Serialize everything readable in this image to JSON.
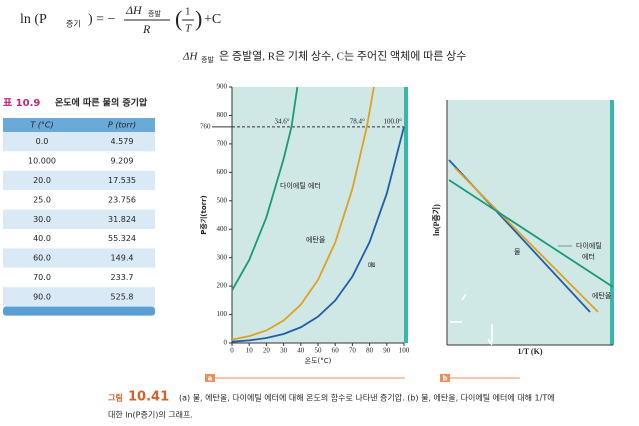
{
  "formula": {
    "lhs": "ln (P",
    "lhs_sub": "증기",
    "eq": ") = −",
    "num": "ΔH",
    "num_sub": "증발",
    "den": "R",
    "frac_num": "1",
    "frac_den": "T",
    "tail": "+C"
  },
  "note": {
    "dh": "ΔH",
    "dh_sub": "증발",
    "text": "은 증발열, R은 기체 상수, C는 주어진 액체에 따른 상수"
  },
  "table": {
    "number": "표 10.9",
    "title": "온도에 따른 물의 증기압",
    "header": [
      "T (°C)",
      "P (torr)"
    ],
    "rows": [
      [
        "0.0",
        "4.579"
      ],
      [
        "10.000",
        "9.209"
      ],
      [
        "20.0",
        "17.535"
      ],
      [
        "25.0",
        "23.756"
      ],
      [
        "30.0",
        "31.824"
      ],
      [
        "40.0",
        "55.324"
      ],
      [
        "60.0",
        "149.4"
      ],
      [
        "70.0",
        "233.7"
      ],
      [
        "90.0",
        "525.8"
      ]
    ]
  },
  "chart_data": [
    {
      "type": "line",
      "panel": "a",
      "x_label": "온도(°C)",
      "y_label": "P증기(torr)",
      "xlim": [
        0,
        100
      ],
      "ylim": [
        0,
        900
      ],
      "xticks": [
        0,
        10,
        20,
        30,
        40,
        50,
        60,
        70,
        80,
        90,
        100
      ],
      "yticks": [
        0,
        100,
        200,
        300,
        400,
        500,
        600,
        700,
        800,
        900
      ],
      "reference_y": 760,
      "annotations": [
        {
          "value": 34.6,
          "label": "34.6°"
        },
        {
          "value": 78.4,
          "label": "78.4°"
        },
        {
          "value": 100,
          "label": "100.0°"
        }
      ],
      "series": [
        {
          "name": "다이에틸 에터",
          "color": "#1a9a78",
          "x": [
            0,
            10,
            20,
            30,
            34.6,
            38
          ],
          "values": [
            185,
            292,
            442,
            647,
            760,
            900
          ]
        },
        {
          "name": "에탄올",
          "color": "#e0a020",
          "x": [
            0,
            10,
            20,
            30,
            40,
            50,
            60,
            70,
            78.4,
            82.5
          ],
          "values": [
            12,
            24,
            44,
            79,
            135,
            222,
            353,
            542,
            760,
            900
          ]
        },
        {
          "name": "물",
          "color": "#1f5fa8",
          "x": [
            0,
            10,
            20,
            30,
            40,
            50,
            60,
            70,
            80,
            90,
            100
          ],
          "values": [
            4.6,
            9.2,
            17.5,
            31.8,
            55.3,
            92.5,
            149.4,
            233.7,
            355,
            525.8,
            760
          ]
        }
      ]
    }
  ],
  "figure_b": {
    "panel": "b",
    "x_label": "1/T (K)",
    "y_label": "ln(P증기)",
    "label_water": "물",
    "label_ether_1": "다이에틸",
    "label_ether_2": "에터",
    "label_ethanol": "에탄올"
  },
  "caption": {
    "word": "그림",
    "number": "10.41",
    "line1": "(a) 물, 에탄올, 다이에틸 에터에 대해 온도의 함수로 나타낸 증기압. (b) 물, 에탄올, 다이에틸 에터에 대해 1/T에",
    "line2": "대한 ln(P증기)의 그래프."
  }
}
